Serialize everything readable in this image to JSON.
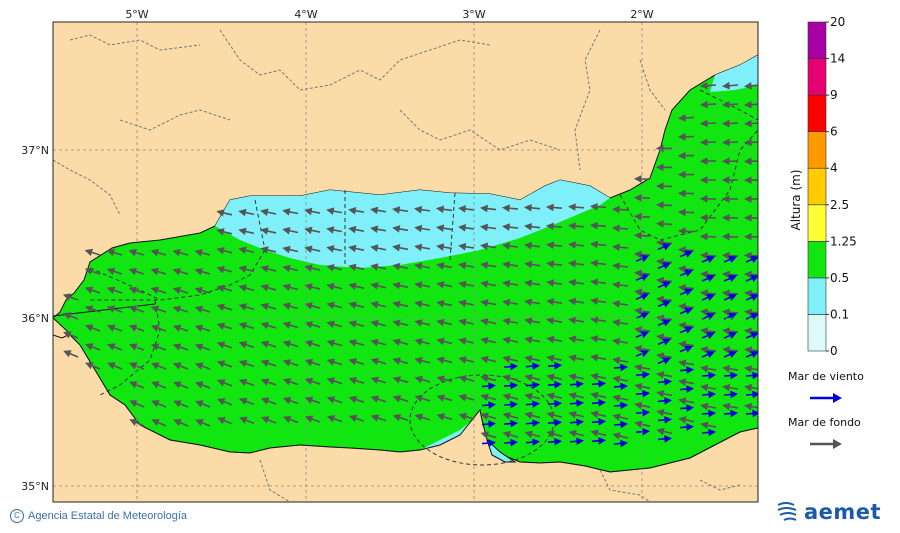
{
  "map": {
    "lon_ticks": [
      "5°W",
      "4°W",
      "3°W",
      "2°W"
    ],
    "lat_ticks": [
      "37°N",
      "36°N",
      "35°N"
    ]
  },
  "colorbar": {
    "title": "Altura (m)",
    "levels": [
      "0",
      "0.1",
      "0.5",
      "1.25",
      "2.5",
      "4",
      "6",
      "9",
      "14",
      "20"
    ],
    "colors": [
      "#dcfafa",
      "#7ff0fa",
      "#11e611",
      "#ffff33",
      "#ffcc00",
      "#ff9900",
      "#ff0000",
      "#e60073",
      "#a600a6"
    ]
  },
  "legend": {
    "wind_sea_label": "Mar de viento",
    "wind_sea_color": "#0000dd",
    "swell_label": "Mar de fondo",
    "swell_color": "#555555"
  },
  "colors": {
    "land": "#fbdca9",
    "calm_sea": "#7ff0fa",
    "moderate_sea": "#11e611"
  },
  "footer": {
    "copyright": "Agencia Estatal de Meteorología",
    "logo_text": "aemet"
  }
}
